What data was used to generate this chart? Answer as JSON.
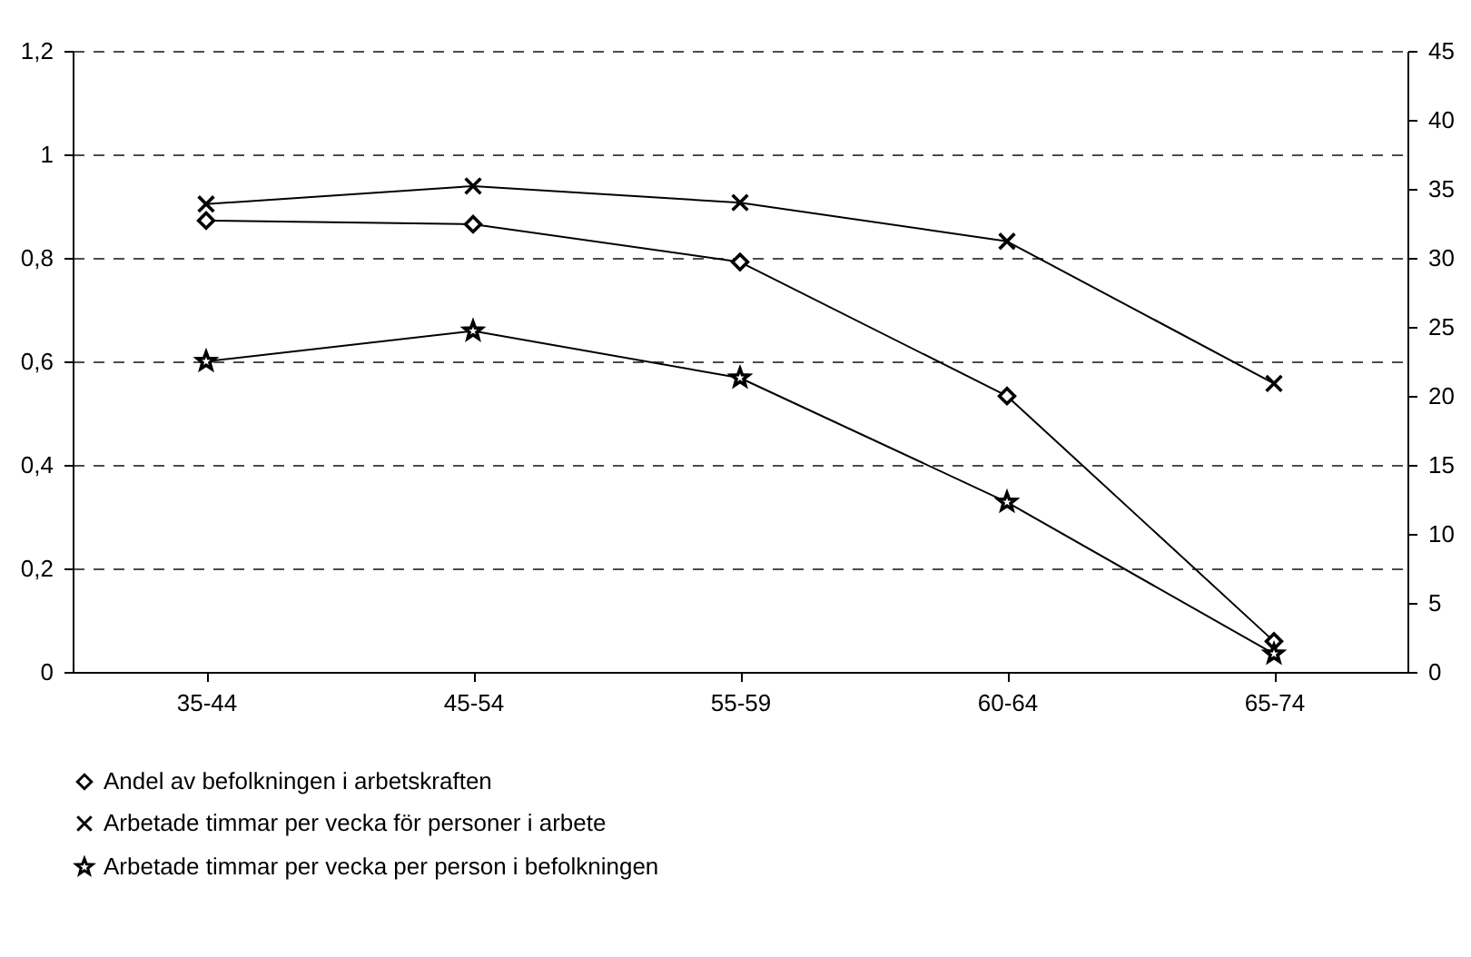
{
  "chart_data": {
    "type": "line",
    "categories": [
      "35-44",
      "45-54",
      "55-59",
      "60-64",
      "65-74"
    ],
    "series": [
      {
        "name": "Andel av befolkningen i arbetskraften",
        "color": "#000000",
        "marker": "diamond",
        "values": [
          0.872,
          0.865,
          0.792,
          0.533,
          0.059
        ]
      },
      {
        "name": "Arbetade timmar per vecka för personer i arbete",
        "color": "#000000",
        "marker": "cross",
        "axis": "y2",
        "values": [
          33.9,
          35.2,
          34.0,
          31.2,
          20.9
        ]
      },
      {
        "name": "Arbetade timmar per vecka per person i befolkningen",
        "color": "#000000",
        "marker": "star",
        "axis": "y2",
        "values": [
          22.5,
          24.7,
          21.3,
          12.3,
          1.3
        ]
      }
    ],
    "ylim": [
      0,
      1.2
    ],
    "yticks": [
      0,
      {
        "value": 0.2,
        "label": "0,2"
      },
      {
        "value": 0.4,
        "label": "0,4"
      },
      {
        "value": 0.6,
        "label": "0,6"
      },
      {
        "value": 0.8,
        "label": "0,8"
      },
      1,
      {
        "value": 1.2,
        "label": "1,2"
      }
    ],
    "y2lim": [
      0,
      45
    ],
    "y2ticks": [
      0,
      5,
      10,
      15,
      20,
      25,
      30,
      35,
      40,
      45
    ],
    "grid": "y",
    "legend": "bottom",
    "line_style": "solid"
  }
}
